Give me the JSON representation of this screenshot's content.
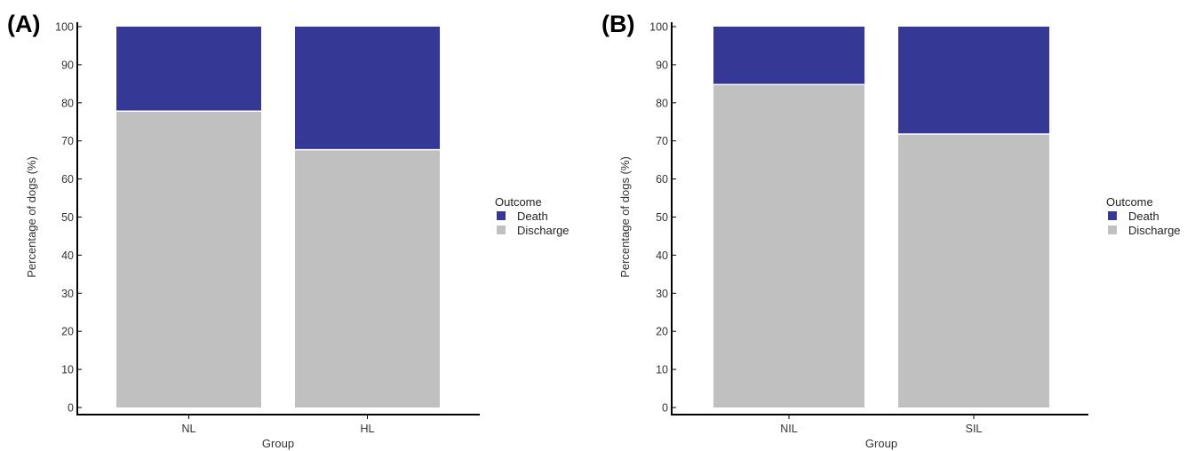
{
  "chart_data": [
    {
      "panel_label": "(A)",
      "type": "bar",
      "stacked": true,
      "categories": [
        "NL",
        "HL"
      ],
      "series": [
        {
          "name": "Discharge",
          "color": "#c0c0c0",
          "values": [
            77.8,
            67.7
          ]
        },
        {
          "name": "Death",
          "color": "#363896",
          "values": [
            22.2,
            32.3
          ]
        }
      ],
      "xlabel": "Group",
      "ylabel": "Percentage of dogs (%)",
      "ylim": [
        0,
        100
      ],
      "yticks": [
        0,
        10,
        20,
        30,
        40,
        50,
        60,
        70,
        80,
        90,
        100
      ],
      "legend": {
        "title": "Outcome",
        "entries": [
          "Death",
          "Discharge"
        ],
        "placement": "right"
      },
      "grid": false
    },
    {
      "panel_label": "(B)",
      "type": "bar",
      "stacked": true,
      "categories": [
        "NIL",
        "SIL"
      ],
      "series": [
        {
          "name": "Discharge",
          "color": "#c0c0c0",
          "values": [
            84.8,
            71.8
          ]
        },
        {
          "name": "Death",
          "color": "#363896",
          "values": [
            15.2,
            28.2
          ]
        }
      ],
      "xlabel": "Group",
      "ylabel": "Percentage of dogs (%)",
      "ylim": [
        0,
        100
      ],
      "yticks": [
        0,
        10,
        20,
        30,
        40,
        50,
        60,
        70,
        80,
        90,
        100
      ],
      "legend": {
        "title": "Outcome",
        "entries": [
          "Death",
          "Discharge"
        ],
        "placement": "right"
      },
      "grid": false
    }
  ]
}
